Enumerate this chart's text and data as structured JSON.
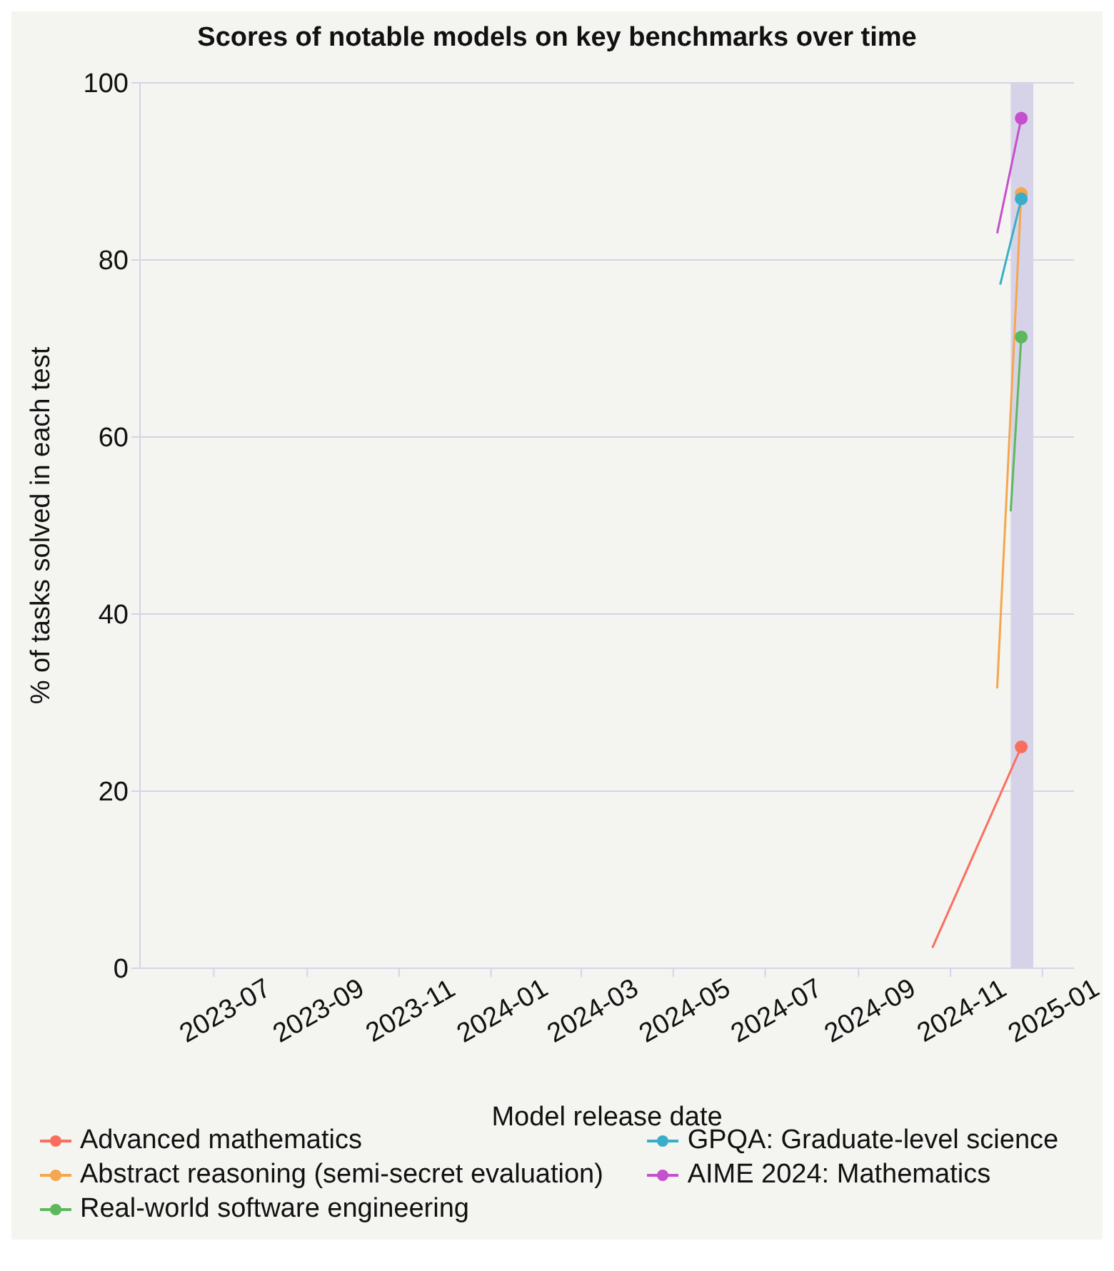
{
  "chart_data": {
    "type": "line",
    "title": "Scores of notable models on key benchmarks over time",
    "xlabel": "Model release date",
    "ylabel": "% of tasks solved in each test",
    "series": [
      {
        "name": "Advanced mathematics",
        "color": "#fa6e5e",
        "x": [
          "2024-10-20",
          "2024-12-18"
        ],
        "values": [
          2.3,
          25
        ]
      },
      {
        "name": "Abstract reasoning (semi-secret evaluation)",
        "color": "#f6a64c",
        "x": [
          "2024-12-02",
          "2024-12-18"
        ],
        "values": [
          31.6,
          87.5
        ]
      },
      {
        "name": "Real-world software engineering",
        "color": "#5cb85c",
        "x": [
          "2024-12-11",
          "2024-12-18"
        ],
        "values": [
          51.6,
          71.3
        ]
      },
      {
        "name": "GPQA: Graduate-level science",
        "color": "#3aaec8",
        "x": [
          "2024-12-04",
          "2024-12-18"
        ],
        "values": [
          77.2,
          86.9
        ]
      },
      {
        "name": "AIME 2024: Mathematics",
        "color": "#c64fcd",
        "x": [
          "2024-12-02",
          "2024-12-18"
        ],
        "values": [
          83,
          96
        ]
      }
    ],
    "xlim": [
      "2023-05-13",
      "2025-01-22"
    ],
    "xticks": [
      "2023-07",
      "2023-09",
      "2023-11",
      "2024-01",
      "2024-03",
      "2024-05",
      "2024-07",
      "2024-09",
      "2024-11",
      "2025-01"
    ],
    "ylim": [
      0,
      100
    ],
    "yticks": [
      0,
      20,
      40,
      60,
      80,
      100
    ],
    "bands": [
      {
        "axis": "x",
        "from": "2024-12-11",
        "to": "2024-12-26",
        "color": "#d6d3e8"
      }
    ],
    "grid": "y",
    "legend": "bottom",
    "marker": "circle",
    "line_style": "solid"
  }
}
